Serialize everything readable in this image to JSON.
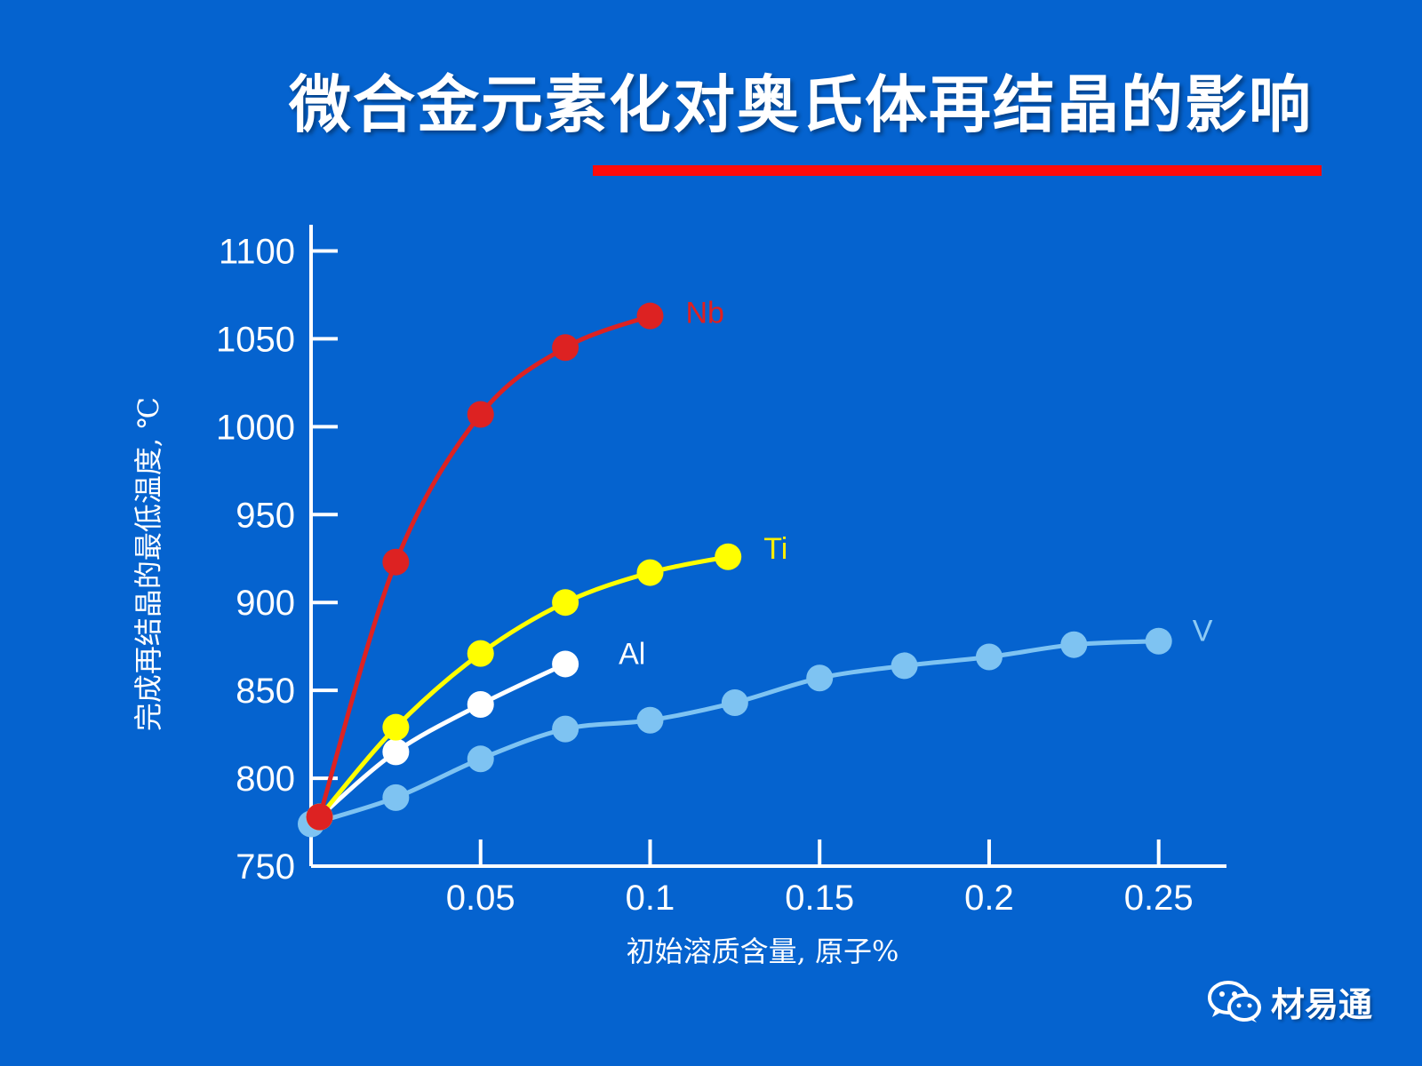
{
  "slide": {
    "title": "微合金元素化对奥氏体再结晶的影响"
  },
  "colors": {
    "background": "#0563cf",
    "underline": "#ff0a0a",
    "axis": "#ffffff",
    "Nb": "#dd2222",
    "Ti": "#ffff00",
    "Al": "#ffffff",
    "V": "#7ec3f2",
    "Nb_label": "#e02020",
    "Ti_label": "#ffee00",
    "V_label": "#8ecbf4"
  },
  "watermark": {
    "text": "材易通",
    "icon": "wechat-icon"
  },
  "chart_data": {
    "type": "line",
    "xlabel": "初始溶质含量, 原子%",
    "ylabel": "完成再结晶的最低温度, ℃",
    "xlim": [
      0,
      0.27
    ],
    "ylim": [
      750,
      1125
    ],
    "xticks": [
      0.05,
      0.1,
      0.15,
      0.2,
      0.25
    ],
    "xtick_labels": [
      "0.05",
      "0.1",
      "0.15",
      "0.2",
      "0.25"
    ],
    "yticks": [
      750,
      800,
      850,
      900,
      950,
      1000,
      1050,
      1100
    ],
    "ytick_labels": [
      "750",
      "800",
      "850",
      "900",
      "950",
      "1000",
      "1050",
      "1100"
    ],
    "grid": false,
    "legend": "inline labels at curve ends",
    "series": [
      {
        "name": "V",
        "x": [
          0,
          0.025,
          0.05,
          0.075,
          0.1,
          0.125,
          0.15,
          0.175,
          0.2,
          0.225,
          0.25
        ],
        "y": [
          774,
          789,
          811,
          828,
          833,
          843,
          857,
          864,
          869,
          876,
          878
        ]
      },
      {
        "name": "Al",
        "x": [
          0.0025,
          0.025,
          0.05,
          0.075
        ],
        "y": [
          778,
          815,
          842,
          865
        ]
      },
      {
        "name": "Ti",
        "x": [
          0.0025,
          0.025,
          0.05,
          0.075,
          0.1,
          0.123
        ],
        "y": [
          778,
          829,
          871,
          900,
          917,
          926
        ]
      },
      {
        "name": "Nb",
        "x": [
          0.0025,
          0.025,
          0.05,
          0.075,
          0.1
        ],
        "y": [
          778,
          923,
          1007,
          1045,
          1063
        ]
      }
    ]
  }
}
